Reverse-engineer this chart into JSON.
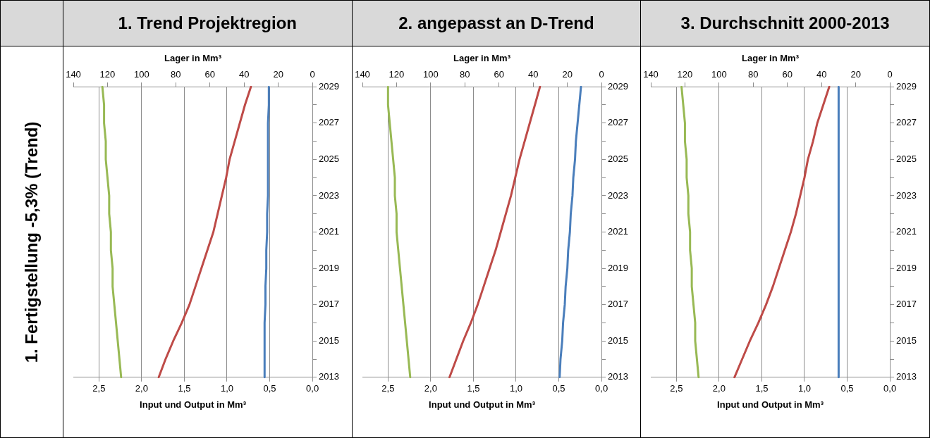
{
  "chart_data": [
    {
      "type": "line",
      "title": "1. Trend Projektregion",
      "annotations": [
        "1. Fertigstellung -5,3% (Trend)"
      ],
      "orientation": "horizontal",
      "categories": [
        "2029",
        null,
        "2027",
        null,
        "2025",
        null,
        "2023",
        null,
        "2021",
        null,
        "2019",
        null,
        "2017",
        null,
        "2015",
        null,
        "2013"
      ],
      "xlabel": "Input und Output in Mm³",
      "x2label": "Lager in Mm³",
      "xlim": [
        2.8,
        0
      ],
      "xticks": [
        {
          "value": 0,
          "label": "0,0"
        },
        {
          "value": 0.5,
          "label": "0,5"
        },
        {
          "value": 1,
          "label": "1,0"
        },
        {
          "value": 1.5,
          "label": "1,5"
        },
        {
          "value": 2,
          "label": "2,0"
        },
        {
          "value": 2.5,
          "label": "2,5"
        }
      ],
      "x2lim": [
        140,
        0
      ],
      "x2ticks": [
        0,
        20,
        40,
        60,
        80,
        100,
        120,
        140
      ],
      "grid": "x",
      "legend": false,
      "marker": "none",
      "series": [
        {
          "color": "#4a7ebb",
          "values": [
            0.51,
            0.51,
            0.52,
            0.52,
            0.52,
            0.52,
            0.52,
            0.53,
            0.53,
            0.54,
            0.54,
            0.55,
            0.55,
            0.56,
            0.56,
            0.56,
            0.56
          ]
        },
        {
          "color": "#be4b48",
          "values": [
            0.72,
            0.79,
            0.85,
            0.91,
            0.97,
            1.01,
            1.06,
            1.11,
            1.16,
            1.23,
            1.3,
            1.37,
            1.44,
            1.53,
            1.63,
            1.72,
            1.8
          ]
        },
        {
          "color": "#98b954",
          "axis": "x2",
          "values": [
            123,
            122,
            122,
            121,
            121,
            120,
            119,
            119,
            118,
            118,
            117,
            117,
            116,
            115,
            114,
            113,
            112
          ]
        }
      ]
    },
    {
      "type": "line",
      "title": "2. angepasst an D-Trend",
      "orientation": "horizontal",
      "categories": [
        "2029",
        null,
        "2027",
        null,
        "2025",
        null,
        "2023",
        null,
        "2021",
        null,
        "2019",
        null,
        "2017",
        null,
        "2015",
        null,
        "2013"
      ],
      "xlabel": "Input und Output in Mm³",
      "x2label": "Lager in Mm³",
      "xlim": [
        2.8,
        0
      ],
      "xticks": [
        {
          "value": 0,
          "label": "0,0"
        },
        {
          "value": 0.5,
          "label": "0,5"
        },
        {
          "value": 1,
          "label": "1,0"
        },
        {
          "value": 1.5,
          "label": "1,5"
        },
        {
          "value": 2,
          "label": "2,0"
        },
        {
          "value": 2.5,
          "label": "2,5"
        }
      ],
      "x2lim": [
        140,
        0
      ],
      "x2ticks": [
        0,
        20,
        40,
        60,
        80,
        100,
        120,
        140
      ],
      "grid": "x",
      "legend": false,
      "marker": "none",
      "series": [
        {
          "color": "#4a7ebb",
          "values": [
            0.24,
            0.26,
            0.28,
            0.3,
            0.31,
            0.33,
            0.34,
            0.36,
            0.37,
            0.39,
            0.4,
            0.42,
            0.43,
            0.45,
            0.46,
            0.48,
            0.49
          ]
        },
        {
          "color": "#be4b48",
          "values": [
            0.72,
            0.78,
            0.84,
            0.9,
            0.96,
            1.01,
            1.06,
            1.12,
            1.18,
            1.24,
            1.31,
            1.38,
            1.45,
            1.53,
            1.62,
            1.7,
            1.78
          ]
        },
        {
          "color": "#98b954",
          "axis": "x2",
          "values": [
            125,
            125,
            124,
            123,
            122,
            121,
            121,
            120,
            120,
            119,
            118,
            117,
            116,
            115,
            114,
            113,
            112
          ]
        }
      ]
    },
    {
      "type": "line",
      "title": "3. Durchschnitt 2000-2013",
      "orientation": "horizontal",
      "categories": [
        "2029",
        null,
        "2027",
        null,
        "2025",
        null,
        "2023",
        null,
        "2021",
        null,
        "2019",
        null,
        "2017",
        null,
        "2015",
        null,
        "2013"
      ],
      "xlabel": "Input und Output in Mm³",
      "x2label": "Lager in Mm³",
      "xlim": [
        2.8,
        0
      ],
      "xticks": [
        {
          "value": 0,
          "label": "0,0"
        },
        {
          "value": 0.5,
          "label": "0,5"
        },
        {
          "value": 1,
          "label": "1,0"
        },
        {
          "value": 1.5,
          "label": "1,5"
        },
        {
          "value": 2,
          "label": "2,0"
        },
        {
          "value": 2.5,
          "label": "2,5"
        }
      ],
      "x2lim": [
        140,
        0
      ],
      "x2ticks": [
        0,
        20,
        40,
        60,
        80,
        100,
        120,
        140
      ],
      "grid": "x",
      "legend": false,
      "marker": "none",
      "series": [
        {
          "color": "#4a7ebb",
          "values": [
            0.6,
            0.6,
            0.6,
            0.6,
            0.6,
            0.6,
            0.6,
            0.6,
            0.6,
            0.6,
            0.6,
            0.6,
            0.6,
            0.6,
            0.6,
            0.6,
            0.6
          ]
        },
        {
          "color": "#be4b48",
          "values": [
            0.71,
            0.78,
            0.85,
            0.9,
            0.96,
            1.0,
            1.05,
            1.1,
            1.16,
            1.23,
            1.3,
            1.37,
            1.45,
            1.54,
            1.64,
            1.73,
            1.82
          ]
        },
        {
          "color": "#98b954",
          "axis": "x2",
          "values": [
            122,
            121,
            120,
            120,
            119,
            119,
            118,
            118,
            117,
            117,
            116,
            116,
            115,
            114,
            114,
            113,
            112
          ]
        }
      ]
    }
  ]
}
